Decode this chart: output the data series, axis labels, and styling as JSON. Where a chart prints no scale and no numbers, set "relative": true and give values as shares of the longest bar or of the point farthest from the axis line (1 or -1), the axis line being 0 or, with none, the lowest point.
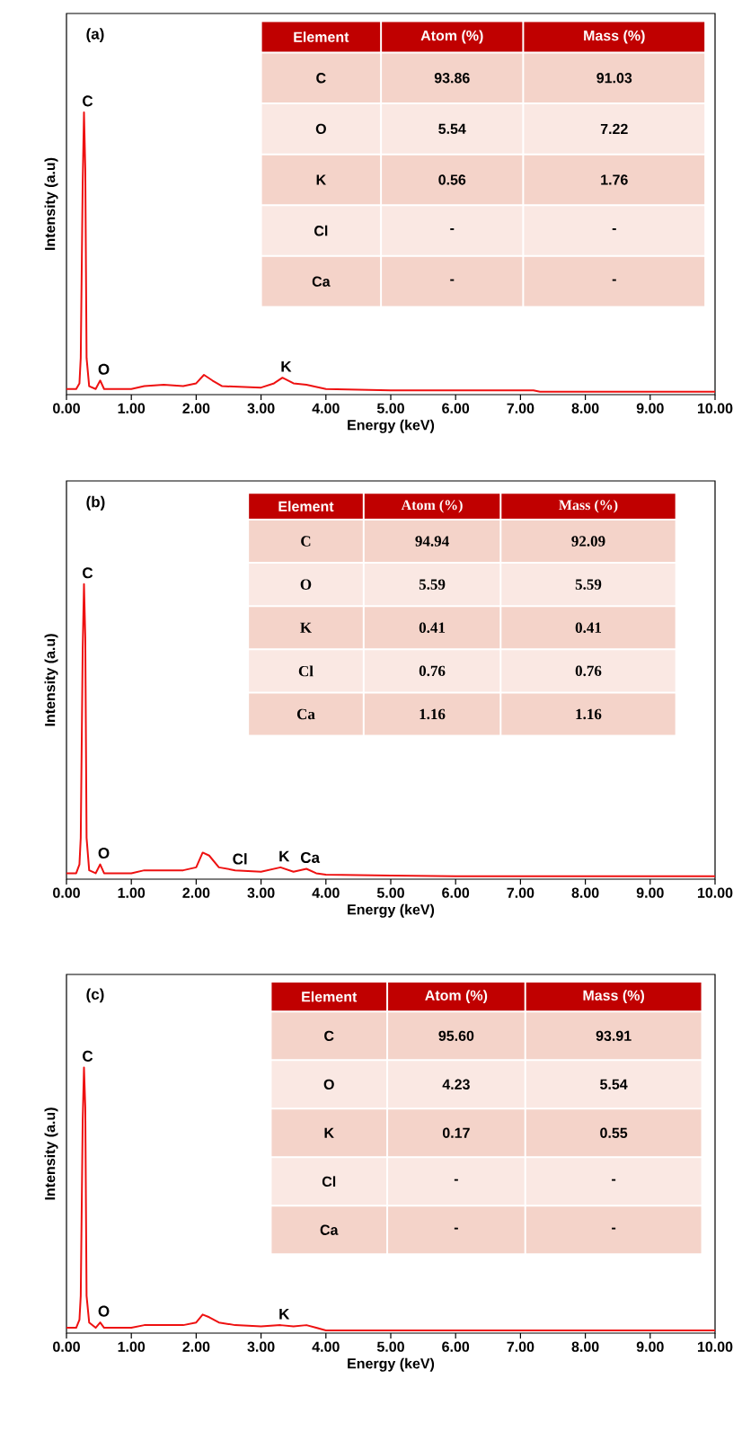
{
  "chart_data": [
    {
      "type": "line",
      "relative": true,
      "xlabel": "Energy (keV)",
      "ylabel": "Intensity (a.u)",
      "color": "#ee1111",
      "xlim": [
        0,
        10
      ],
      "xticks": [
        {
          "value": 0,
          "label": "0.00"
        },
        {
          "value": 1,
          "label": "1.00"
        },
        {
          "value": 2,
          "label": "2.00"
        },
        {
          "value": 3,
          "label": "3.00"
        },
        {
          "value": 4,
          "label": "4.00"
        },
        {
          "value": 5,
          "label": "5.00"
        },
        {
          "value": 6,
          "label": "6.00"
        },
        {
          "value": 7,
          "label": "7.00"
        },
        {
          "value": 8,
          "label": "8.00"
        },
        {
          "value": 9,
          "label": "9.00"
        },
        {
          "value": 10,
          "label": "10.00"
        }
      ],
      "x": [
        0.0,
        0.15,
        0.2,
        0.22,
        0.25,
        0.27,
        0.29,
        0.31,
        0.35,
        0.45,
        0.52,
        0.58,
        1.0,
        1.2,
        1.5,
        1.8,
        2.0,
        2.12,
        2.25,
        2.4,
        3.0,
        3.2,
        3.33,
        3.5,
        3.7,
        4.0,
        5.0,
        6.0,
        7.2,
        7.3,
        8.0,
        10.0
      ],
      "values": [
        0.02,
        0.02,
        0.04,
        0.13,
        0.75,
        1.0,
        0.8,
        0.13,
        0.03,
        0.02,
        0.05,
        0.02,
        0.02,
        0.03,
        0.035,
        0.03,
        0.04,
        0.07,
        0.05,
        0.03,
        0.025,
        0.04,
        0.06,
        0.04,
        0.035,
        0.02,
        0.015,
        0.015,
        0.015,
        0.01,
        0.01,
        0.01
      ],
      "annotations": [
        "(a)",
        "Element",
        "Atom (%)",
        "Mass (%)",
        "C",
        "93.86",
        "91.03",
        "O",
        "5.54",
        "7.22",
        "K",
        "0.56",
        "1.76",
        "Cl",
        "-",
        "-",
        "Ca",
        "-",
        "-",
        {
          "text": "C",
          "x": 0.27,
          "y": 1.0
        },
        {
          "text": "O",
          "x": 0.52,
          "y": 0.05
        },
        {
          "text": "K",
          "x": 3.33,
          "y": 0.06
        }
      ]
    },
    {
      "type": "line",
      "relative": true,
      "xlabel": "Energy (keV)",
      "ylabel": "Intensity (a.u)",
      "color": "#ee1111",
      "xlim": [
        0,
        10
      ],
      "xticks": [
        {
          "value": 0,
          "label": "0.00"
        },
        {
          "value": 1,
          "label": "1.00"
        },
        {
          "value": 2,
          "label": "2.00"
        },
        {
          "value": 3,
          "label": "3.00"
        },
        {
          "value": 4,
          "label": "4.00"
        },
        {
          "value": 5,
          "label": "5.00"
        },
        {
          "value": 6,
          "label": "6.00"
        },
        {
          "value": 7,
          "label": "7.00"
        },
        {
          "value": 8,
          "label": "8.00"
        },
        {
          "value": 9,
          "label": "9.00"
        },
        {
          "value": 10,
          "label": "10.00"
        }
      ],
      "x": [
        0.0,
        0.15,
        0.2,
        0.22,
        0.25,
        0.27,
        0.29,
        0.31,
        0.35,
        0.45,
        0.52,
        0.58,
        1.0,
        1.2,
        1.5,
        1.8,
        2.0,
        2.1,
        2.2,
        2.35,
        2.6,
        3.0,
        3.3,
        3.5,
        3.7,
        3.85,
        4.0,
        5.0,
        6.0,
        7.0,
        8.0,
        10.0
      ],
      "values": [
        0.02,
        0.02,
        0.05,
        0.14,
        0.78,
        1.0,
        0.82,
        0.14,
        0.03,
        0.02,
        0.05,
        0.02,
        0.02,
        0.03,
        0.03,
        0.03,
        0.04,
        0.09,
        0.08,
        0.04,
        0.03,
        0.025,
        0.04,
        0.025,
        0.035,
        0.02,
        0.015,
        0.012,
        0.01,
        0.01,
        0.01,
        0.01
      ],
      "annotations": [
        "(b)",
        "Element",
        "Atom (%)",
        "Mass (%)",
        "C",
        "94.94",
        "92.09",
        "O",
        "5.59",
        "5.59",
        "K",
        "0.41",
        "0.41",
        "Cl",
        "0.76",
        "0.76",
        "Ca",
        "1.16",
        "1.16",
        {
          "text": "C",
          "x": 0.27,
          "y": 1.0
        },
        {
          "text": "O",
          "x": 0.52,
          "y": 0.05
        },
        {
          "text": "Cl",
          "x": 2.62,
          "y": 0.03
        },
        {
          "text": "K",
          "x": 3.3,
          "y": 0.04
        },
        {
          "text": "Ca",
          "x": 3.7,
          "y": 0.035
        }
      ]
    },
    {
      "type": "line",
      "relative": true,
      "xlabel": "Energy (keV)",
      "ylabel": "Intensity (a.u)",
      "color": "#ee1111",
      "xlim": [
        0,
        10
      ],
      "xticks": [
        {
          "value": 0,
          "label": "0.00"
        },
        {
          "value": 1,
          "label": "1.00"
        },
        {
          "value": 2,
          "label": "2.00"
        },
        {
          "value": 3,
          "label": "3.00"
        },
        {
          "value": 4,
          "label": "4.00"
        },
        {
          "value": 5,
          "label": "5.00"
        },
        {
          "value": 6,
          "label": "6.00"
        },
        {
          "value": 7,
          "label": "7.00"
        },
        {
          "value": 8,
          "label": "8.00"
        },
        {
          "value": 9,
          "label": "9.00"
        },
        {
          "value": 10,
          "label": "10.00"
        }
      ],
      "x": [
        0.0,
        0.15,
        0.2,
        0.22,
        0.25,
        0.27,
        0.29,
        0.31,
        0.35,
        0.45,
        0.52,
        0.58,
        1.0,
        1.2,
        1.5,
        1.8,
        2.0,
        2.1,
        2.2,
        2.35,
        2.6,
        3.0,
        3.3,
        3.5,
        3.7,
        3.85,
        4.0,
        5.0,
        6.0,
        8.0,
        10.0
      ],
      "values": [
        0.02,
        0.02,
        0.05,
        0.14,
        0.8,
        1.0,
        0.85,
        0.14,
        0.04,
        0.02,
        0.04,
        0.02,
        0.02,
        0.03,
        0.03,
        0.03,
        0.04,
        0.07,
        0.06,
        0.04,
        0.03,
        0.025,
        0.03,
        0.025,
        0.03,
        0.02,
        0.01,
        0.01,
        0.01,
        0.01,
        0.01
      ],
      "annotations": [
        "(c)",
        "Element",
        "Atom (%)",
        "Mass (%)",
        "C",
        "95.60",
        "93.91",
        "O",
        "4.23",
        "5.54",
        "K",
        "0.17",
        "0.55",
        "Cl",
        "-",
        "-",
        "Ca",
        "-",
        "-",
        {
          "text": "C",
          "x": 0.27,
          "y": 1.0
        },
        {
          "text": "O",
          "x": 0.52,
          "y": 0.04
        },
        {
          "text": "K",
          "x": 3.3,
          "y": 0.03
        }
      ]
    }
  ]
}
